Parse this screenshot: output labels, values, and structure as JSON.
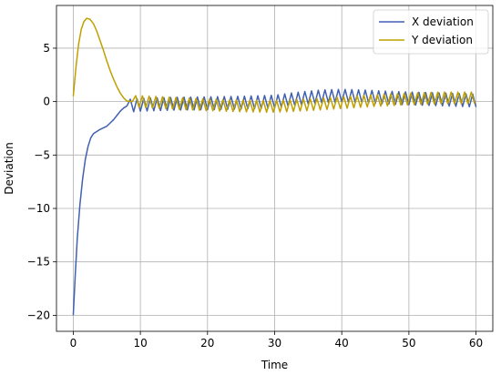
{
  "chart_data": {
    "type": "line",
    "title": "",
    "xlabel": "Time",
    "ylabel": "Deviation",
    "xlim": [
      -2.5,
      62.5
    ],
    "ylim": [
      -21.5,
      9.0
    ],
    "xticks": [
      0,
      10,
      20,
      30,
      40,
      50,
      60
    ],
    "yticks": [
      -20,
      -15,
      -10,
      -5,
      0,
      5
    ],
    "grid": true,
    "legend": "top-right",
    "series": [
      {
        "name": "X deviation",
        "color": "#4060b0",
        "oscillation": {
          "start": 8,
          "end": 60,
          "period": 1.0,
          "amplitude": 0.6
        },
        "points": [
          [
            0,
            -20.0
          ],
          [
            0.3,
            -16.2
          ],
          [
            0.6,
            -12.8
          ],
          [
            1.0,
            -9.6
          ],
          [
            1.4,
            -7.2
          ],
          [
            1.8,
            -5.4
          ],
          [
            2.2,
            -4.2
          ],
          [
            2.6,
            -3.4
          ],
          [
            3.0,
            -3.0
          ],
          [
            3.5,
            -2.8
          ],
          [
            4.0,
            -2.6
          ],
          [
            4.5,
            -2.45
          ],
          [
            5.0,
            -2.3
          ],
          [
            5.5,
            -2.0
          ],
          [
            6.0,
            -1.7
          ],
          [
            6.5,
            -1.3
          ],
          [
            7.0,
            -0.9
          ],
          [
            7.5,
            -0.6
          ],
          [
            8.0,
            -0.4
          ],
          [
            10,
            -0.3
          ],
          [
            15,
            -0.2
          ],
          [
            20,
            -0.15
          ],
          [
            25,
            -0.1
          ],
          [
            30,
            0.0
          ],
          [
            33,
            0.25
          ],
          [
            37,
            0.5
          ],
          [
            40,
            0.55
          ],
          [
            43,
            0.5
          ],
          [
            46,
            0.4
          ],
          [
            50,
            0.3
          ],
          [
            55,
            0.2
          ],
          [
            60,
            0.1
          ]
        ]
      },
      {
        "name": "Y deviation",
        "color": "#bfa000",
        "oscillation": {
          "start": 8.8,
          "end": 60,
          "period": 1.0,
          "amplitude": 0.55
        },
        "points": [
          [
            0,
            0.5
          ],
          [
            0.4,
            3.2
          ],
          [
            0.8,
            5.4
          ],
          [
            1.2,
            6.8
          ],
          [
            1.6,
            7.5
          ],
          [
            2.0,
            7.8
          ],
          [
            2.5,
            7.7
          ],
          [
            3.0,
            7.3
          ],
          [
            3.5,
            6.6
          ],
          [
            4.0,
            5.7
          ],
          [
            4.5,
            4.8
          ],
          [
            5.0,
            3.8
          ],
          [
            5.5,
            2.9
          ],
          [
            6.0,
            2.1
          ],
          [
            6.5,
            1.4
          ],
          [
            7.0,
            0.8
          ],
          [
            7.5,
            0.35
          ],
          [
            8.0,
            0.05
          ],
          [
            8.8,
            0.0
          ],
          [
            10,
            0.0
          ],
          [
            15,
            -0.15
          ],
          [
            20,
            -0.3
          ],
          [
            25,
            -0.4
          ],
          [
            30,
            -0.45
          ],
          [
            35,
            -0.3
          ],
          [
            40,
            -0.1
          ],
          [
            45,
            0.1
          ],
          [
            50,
            0.25
          ],
          [
            55,
            0.35
          ],
          [
            60,
            0.35
          ]
        ]
      }
    ]
  }
}
